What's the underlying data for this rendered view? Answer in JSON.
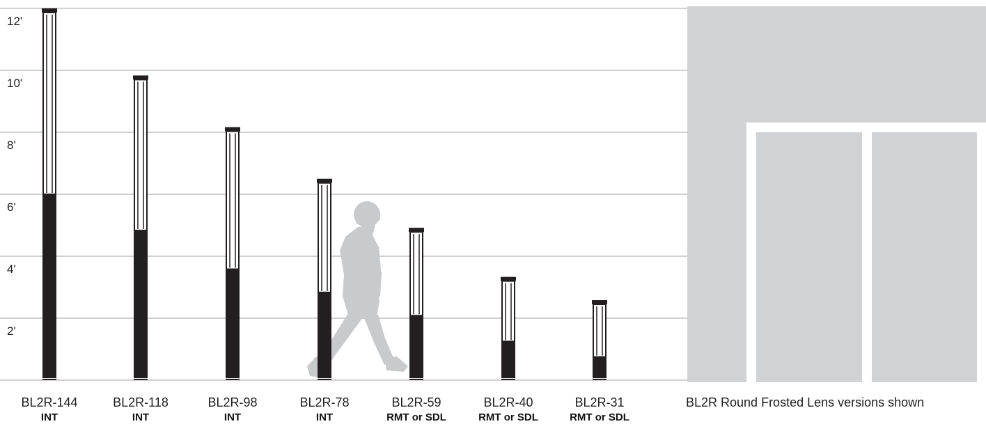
{
  "height_ticks": [
    {
      "label": "12'",
      "feet": 12
    },
    {
      "label": "10'",
      "feet": 10
    },
    {
      "label": "8'",
      "feet": 8
    },
    {
      "label": "6'",
      "feet": 6
    },
    {
      "label": "4'",
      "feet": 4
    },
    {
      "label": "2'",
      "feet": 2
    }
  ],
  "bollards": [
    {
      "model": "BL2R-144",
      "mount": "INT",
      "height_in": 144,
      "base_in": 72
    },
    {
      "model": "BL2R-118",
      "mount": "INT",
      "height_in": 118,
      "base_in": 58
    },
    {
      "model": "BL2R-98",
      "mount": "INT",
      "height_in": 98,
      "base_in": 43
    },
    {
      "model": "BL2R-78",
      "mount": "INT",
      "height_in": 78,
      "base_in": 34
    },
    {
      "model": "BL2R-59",
      "mount": "RMT or SDL",
      "height_in": 59,
      "base_in": 25
    },
    {
      "model": "BL2R-40",
      "mount": "RMT or SDL",
      "height_in": 40,
      "base_in": 15
    },
    {
      "model": "BL2R-31",
      "mount": "RMT or SDL",
      "height_in": 31,
      "base_in": 9
    }
  ],
  "caption": "BL2R Round Frosted Lens versions shown",
  "colors": {
    "bollard": "#231f20",
    "gridline": "#d0d0d0",
    "building": "#d1d2d4",
    "person": "#c9cacc"
  }
}
